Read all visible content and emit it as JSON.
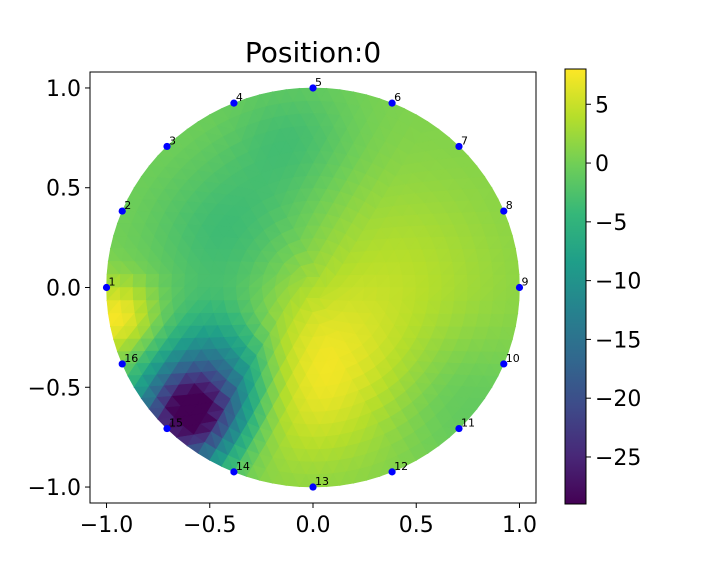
{
  "chart_data": {
    "type": "heatmap",
    "title": "Position:0",
    "xlim": [
      -1.08,
      1.08
    ],
    "ylim": [
      -1.08,
      1.08
    ],
    "x_ticks": [
      {
        "value": -1.0,
        "label": "−1.0"
      },
      {
        "value": -0.5,
        "label": "−0.5"
      },
      {
        "value": 0.0,
        "label": "0.0"
      },
      {
        "value": 0.5,
        "label": "0.5"
      },
      {
        "value": 1.0,
        "label": "1.0"
      }
    ],
    "y_ticks": [
      {
        "value": 1.0,
        "label": "1.0"
      },
      {
        "value": 0.5,
        "label": "0.5"
      },
      {
        "value": 0.0,
        "label": "0.0"
      },
      {
        "value": -0.5,
        "label": "−0.5"
      },
      {
        "value": -1.0,
        "label": "−1.0"
      }
    ],
    "colorbar": {
      "colormap": "viridis",
      "range": [
        -29,
        8
      ],
      "ticks": [
        {
          "value": 5,
          "label": "5"
        },
        {
          "value": 0,
          "label": "0"
        },
        {
          "value": -5,
          "label": "−5"
        },
        {
          "value": -10,
          "label": "−10"
        },
        {
          "value": -15,
          "label": "−15"
        },
        {
          "value": -20,
          "label": "−20"
        },
        {
          "value": -25,
          "label": "−25"
        }
      ]
    },
    "domain": {
      "shape": "circle",
      "center": [
        0,
        0
      ],
      "radius": 1.0
    },
    "field_anomalies": [
      {
        "x": -0.6,
        "y": -0.65,
        "value": -29,
        "spread": 0.17
      },
      {
        "x": -0.45,
        "y": -0.4,
        "value": -12,
        "spread": 0.2
      },
      {
        "x": -0.95,
        "y": -0.15,
        "value": 8,
        "spread": 0.13
      },
      {
        "x": -0.05,
        "y": -0.45,
        "value": 7,
        "spread": 0.3
      },
      {
        "x": 0.4,
        "y": 0.0,
        "value": 4,
        "spread": 0.4
      },
      {
        "x": -0.4,
        "y": 0.25,
        "value": -4,
        "spread": 0.28
      },
      {
        "x": -0.1,
        "y": 0.75,
        "value": -3,
        "spread": 0.22
      },
      {
        "x": 0.7,
        "y": -0.55,
        "value": -2,
        "spread": 0.25
      }
    ],
    "background_value": 0.5,
    "electrodes": {
      "color": "#0000ff",
      "points": [
        {
          "label": "1",
          "x": -1.0,
          "y": 0.0
        },
        {
          "label": "2",
          "x": -0.924,
          "y": 0.383
        },
        {
          "label": "3",
          "x": -0.707,
          "y": 0.707
        },
        {
          "label": "4",
          "x": -0.383,
          "y": 0.924
        },
        {
          "label": "5",
          "x": 0.0,
          "y": 1.0
        },
        {
          "label": "6",
          "x": 0.383,
          "y": 0.924
        },
        {
          "label": "7",
          "x": 0.707,
          "y": 0.707
        },
        {
          "label": "8",
          "x": 0.924,
          "y": 0.383
        },
        {
          "label": "9",
          "x": 1.0,
          "y": 0.0
        },
        {
          "label": "10",
          "x": 0.924,
          "y": -0.383
        },
        {
          "label": "11",
          "x": 0.707,
          "y": -0.707
        },
        {
          "label": "12",
          "x": 0.383,
          "y": -0.924
        },
        {
          "label": "13",
          "x": 0.0,
          "y": -1.0
        },
        {
          "label": "14",
          "x": -0.383,
          "y": -0.924
        },
        {
          "label": "15",
          "x": -0.707,
          "y": -0.707
        },
        {
          "label": "16",
          "x": -0.924,
          "y": -0.383
        }
      ]
    }
  }
}
